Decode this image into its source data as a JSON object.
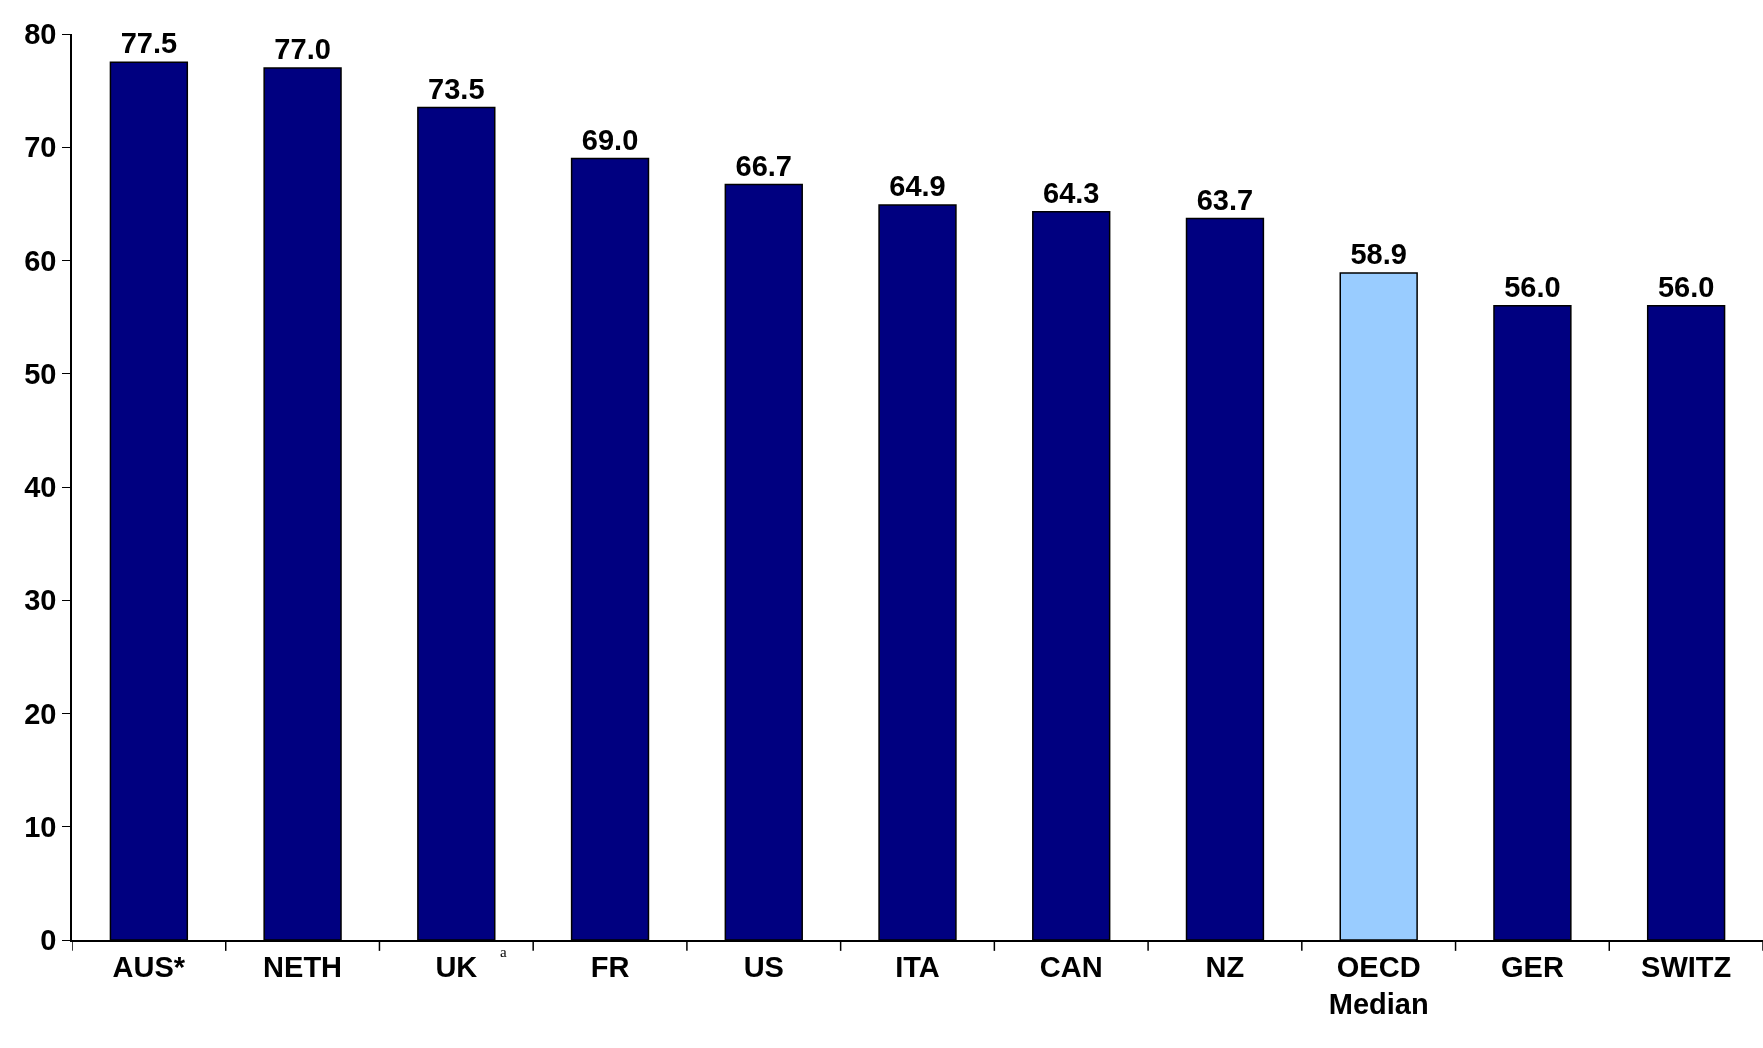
{
  "chart_data": {
    "type": "bar",
    "categories": [
      "AUS*",
      "NETH",
      "UK",
      "FR",
      "US",
      "ITA",
      "CAN",
      "NZ",
      "OECD Median",
      "GER",
      "SWITZ"
    ],
    "values": [
      77.5,
      77.0,
      73.5,
      69.0,
      66.7,
      64.9,
      64.3,
      63.7,
      58.9,
      56.0,
      56.0
    ],
    "colors": [
      "#000080",
      "#000080",
      "#000080",
      "#000080",
      "#000080",
      "#000080",
      "#000080",
      "#000080",
      "#99ccff",
      "#000080",
      "#000080"
    ],
    "value_labels": [
      "77.5",
      "77.0",
      "73.5",
      "69.0",
      "66.7",
      "64.9",
      "64.3",
      "63.7",
      "58.9",
      "56.0",
      "56.0"
    ],
    "ylim": [
      0,
      80
    ],
    "yticks": [
      0,
      10,
      20,
      30,
      40,
      50,
      60,
      70,
      80
    ],
    "grid": false,
    "annotations": [
      {
        "text": "a",
        "x": "UK",
        "y": 0
      }
    ]
  }
}
